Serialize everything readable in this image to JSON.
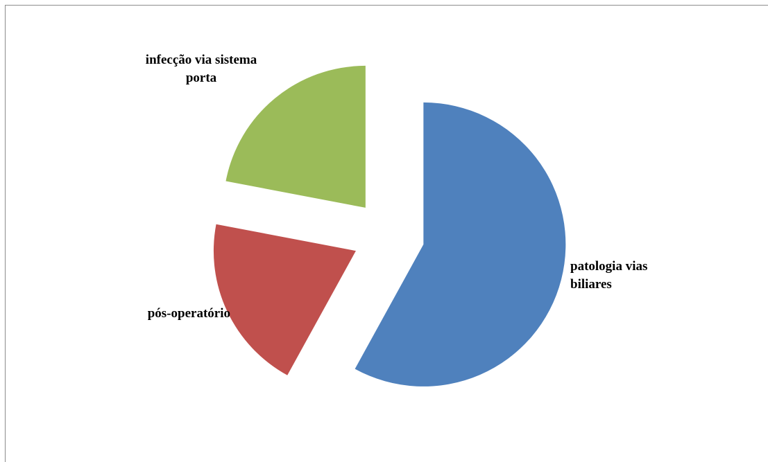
{
  "chart_data": {
    "type": "pie",
    "categories": [
      "patologia vias biliares",
      "pós-operatório",
      "infecção via sistema porta"
    ],
    "values": [
      58,
      20,
      22
    ],
    "exploded": true,
    "legend": "none",
    "data_labels": "category-name-outside",
    "slice_labels": [
      [
        "patologia vias",
        "biliares"
      ],
      [
        "pós-operatório"
      ],
      [
        "infecção via sistema",
        "porta"
      ]
    ],
    "colors": [
      "#4F81BD",
      "#C0504D",
      "#9BBB59"
    ]
  }
}
